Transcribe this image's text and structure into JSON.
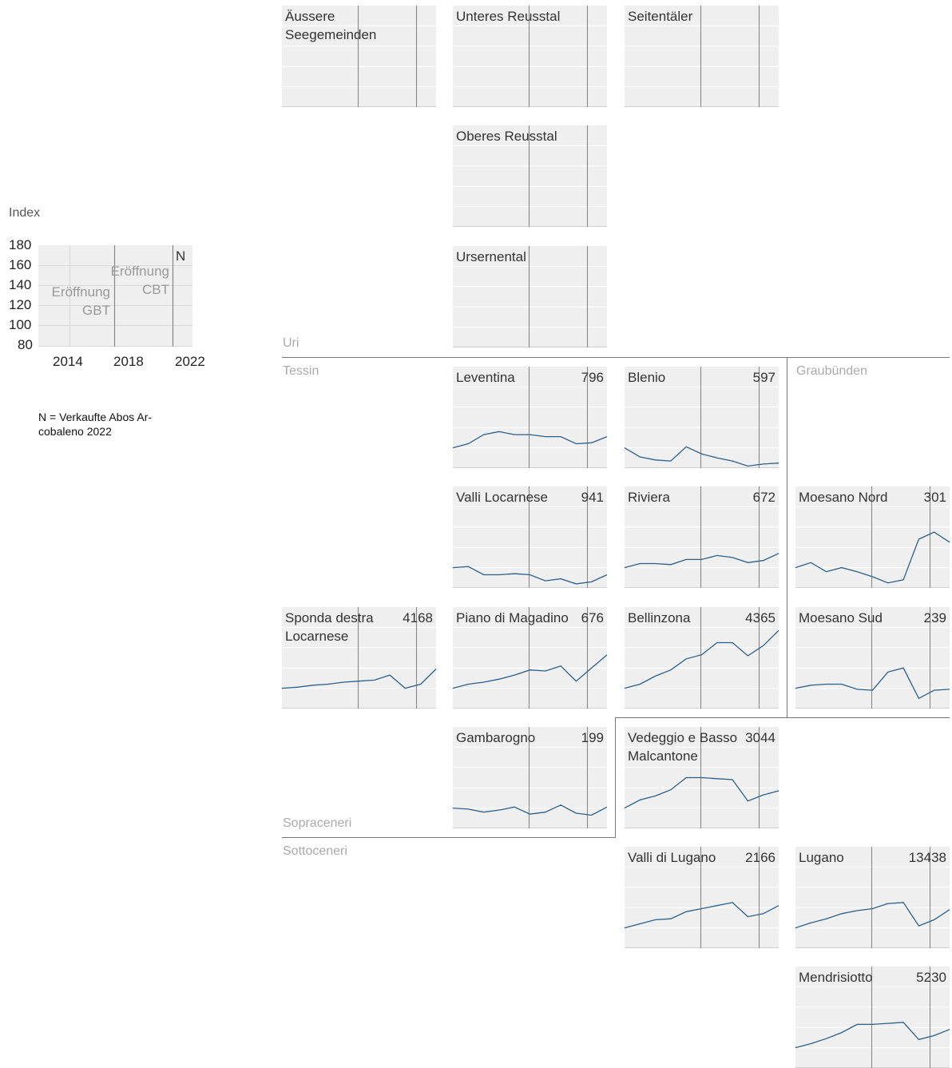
{
  "legend": {
    "y_axis_label": "Index",
    "y_ticks": [
      "180",
      "160",
      "140",
      "120",
      "100",
      "80"
    ],
    "x_ticks": [
      "2014",
      "2018",
      "2022"
    ],
    "n_marker": "N",
    "annotation_gbt": "Eröffnung GBT",
    "annotation_cbt": "Eröffnung CBT",
    "note": "N = Verkaufte Abos Ar-cobaleno 2022"
  },
  "regions": {
    "uri": "Uri",
    "tessin": "Tessin",
    "graubuenden": "Graubünden",
    "sopraceneri": "Sopraceneri",
    "sottoceneri": "Sottoceneri"
  },
  "colors": {
    "line": "#2c5f8a",
    "panel_bg": "#efefef",
    "grid": "#ffffff",
    "event_line": "#888888",
    "region_label": "#aaaaaa"
  },
  "chart_data": {
    "type": "line",
    "x": [
      2012,
      2013,
      2014,
      2015,
      2016,
      2017,
      2018,
      2019,
      2020,
      2021,
      2022
    ],
    "ylim": [
      80,
      180
    ],
    "xlim": [
      2012,
      2022
    ],
    "events": [
      {
        "label": "Eröffnung GBT",
        "year": 2016.9
      },
      {
        "label": "Eröffnung CBT",
        "year": 2020.7
      }
    ],
    "panels": [
      {
        "id": "aeussere-seegemeinden",
        "name": "Äussere Seegemeinden",
        "n": "",
        "values": []
      },
      {
        "id": "unteres-reusstal",
        "name": "Unteres Reusstal",
        "n": "",
        "values": []
      },
      {
        "id": "seitentaeler",
        "name": "Seitentäler",
        "n": "",
        "values": []
      },
      {
        "id": "oberes-reusstal",
        "name": "Oberes Reusstal",
        "n": "",
        "values": []
      },
      {
        "id": "ursenental",
        "name": "Ursernental",
        "n": "",
        "values": []
      },
      {
        "id": "leventina",
        "name": "Leventina",
        "n": "796",
        "values": [
          100,
          104,
          113,
          116,
          113,
          113,
          111,
          111,
          104,
          105,
          111
        ]
      },
      {
        "id": "blenio",
        "name": "Blenio",
        "n": "597",
        "values": [
          100,
          91,
          88,
          87,
          101,
          94,
          90,
          87,
          82,
          84,
          85
        ]
      },
      {
        "id": "valli-locarnese",
        "name": "Valli Locarnese",
        "n": "941",
        "values": [
          100,
          101,
          93,
          93,
          94,
          93,
          87,
          89,
          84,
          86,
          93
        ]
      },
      {
        "id": "riviera",
        "name": "Riviera",
        "n": "672",
        "values": [
          100,
          104,
          104,
          103,
          108,
          108,
          112,
          110,
          105,
          107,
          114
        ]
      },
      {
        "id": "moesano-nord",
        "name": "Moesano Nord",
        "n": "301",
        "values": [
          100,
          105,
          96,
          100,
          96,
          91,
          85,
          88,
          128,
          135,
          125
        ]
      },
      {
        "id": "sponda-destra-locarnese",
        "name": "Sponda destra Locarnese",
        "n": "4168",
        "values": [
          100,
          101,
          103,
          104,
          106,
          107,
          108,
          113,
          100,
          104,
          119
        ]
      },
      {
        "id": "piano-di-magadino",
        "name": "Piano di Magadino",
        "n": "676",
        "values": [
          100,
          104,
          106,
          109,
          113,
          118,
          117,
          122,
          107,
          120,
          133
        ]
      },
      {
        "id": "bellinzona",
        "name": "Bellinzona",
        "n": "4365",
        "values": [
          100,
          104,
          112,
          118,
          129,
          133,
          145,
          145,
          132,
          142,
          157
        ]
      },
      {
        "id": "moesano-sud",
        "name": "Moesano Sud",
        "n": "239",
        "values": [
          100,
          103,
          104,
          104,
          99,
          98,
          116,
          120,
          90,
          98,
          99
        ]
      },
      {
        "id": "gambarogno",
        "name": "Gambarogno",
        "n": "199",
        "values": [
          100,
          99,
          96,
          98,
          101,
          94,
          96,
          103,
          95,
          93,
          101
        ]
      },
      {
        "id": "vedeggio-basso-malcantone",
        "name": "Vedeggio e Basso Malcantone",
        "n": "3044",
        "values": [
          100,
          108,
          112,
          118,
          130,
          130,
          129,
          128,
          107,
          113,
          117
        ]
      },
      {
        "id": "valli-di-lugano",
        "name": "Valli di Lugano",
        "n": "2166",
        "values": [
          100,
          104,
          108,
          109,
          116,
          119,
          122,
          125,
          111,
          114,
          122
        ]
      },
      {
        "id": "lugano",
        "name": "Lugano",
        "n": "13438",
        "values": [
          100,
          105,
          109,
          114,
          117,
          119,
          124,
          125,
          102,
          108,
          118
        ]
      },
      {
        "id": "mendrisiotto",
        "name": "Mendrisiotto",
        "n": "5230",
        "values": [
          100,
          104,
          109,
          115,
          123,
          123,
          124,
          125,
          108,
          112,
          118
        ]
      }
    ]
  }
}
